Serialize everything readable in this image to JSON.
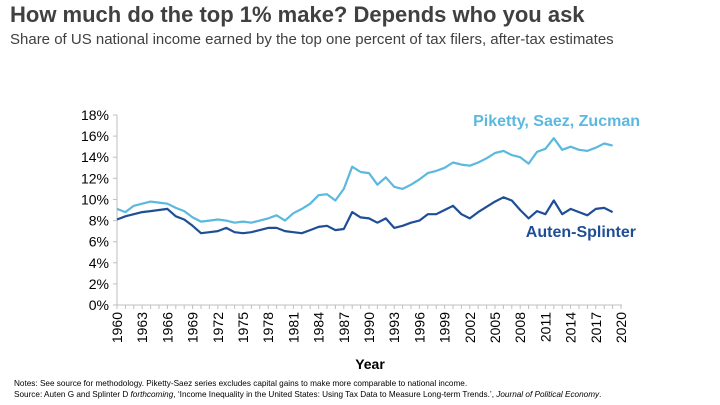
{
  "title": "How much do the top 1% make? Depends who you ask",
  "subtitle": "Share of US national income earned by the top one percent of tax filers, after-tax estimates",
  "notes": {
    "line1": "Notes: See source for methodology. Piketty-Saez series excludes capital gains to make more comparable to national income.",
    "source_a": "Source: Auten G and Splinter D ",
    "source_b": "forthcoming",
    "source_c": ", ‘Income Inequality in the United States: Using Tax Data to Measure Long-term Trends.’, ",
    "source_d": "Journal of Political Economy",
    "source_e": "."
  },
  "chart_data": {
    "type": "line",
    "xlabel": "Year",
    "ylabel": "",
    "xlim": [
      1960,
      2020
    ],
    "ylim": [
      0,
      18
    ],
    "x_ticks": [
      "1960",
      "1963",
      "1966",
      "1969",
      "1972",
      "1975",
      "1978",
      "1981",
      "1984",
      "1987",
      "1990",
      "1993",
      "1996",
      "1999",
      "2002",
      "2005",
      "2008",
      "2011",
      "2014",
      "2017",
      "2020"
    ],
    "y_ticks": [
      "0%",
      "2%",
      "4%",
      "6%",
      "8%",
      "10%",
      "12%",
      "14%",
      "16%",
      "18%"
    ],
    "grid": false,
    "legend": "inline labels",
    "x": [
      1960,
      1961,
      1962,
      1963,
      1964,
      1965,
      1966,
      1967,
      1968,
      1969,
      1970,
      1971,
      1972,
      1973,
      1974,
      1975,
      1976,
      1977,
      1978,
      1979,
      1980,
      1981,
      1982,
      1983,
      1984,
      1985,
      1986,
      1987,
      1988,
      1989,
      1990,
      1991,
      1992,
      1993,
      1994,
      1995,
      1996,
      1997,
      1998,
      1999,
      2000,
      2001,
      2002,
      2003,
      2004,
      2005,
      2006,
      2007,
      2008,
      2009,
      2010,
      2011,
      2012,
      2013,
      2014,
      2015,
      2016,
      2017,
      2018,
      2019
    ],
    "series": [
      {
        "name": "Piketty, Saez, Zucman",
        "color": "#5bb8de",
        "values": [
          9.1,
          8.8,
          9.4,
          9.6,
          9.8,
          9.7,
          9.6,
          9.2,
          8.9,
          8.3,
          7.9,
          8.0,
          8.1,
          8.0,
          7.8,
          7.9,
          7.8,
          8.0,
          8.2,
          8.5,
          8.0,
          8.7,
          9.1,
          9.6,
          10.4,
          10.5,
          9.9,
          11.0,
          13.1,
          12.6,
          12.5,
          11.4,
          12.1,
          11.2,
          11.0,
          11.4,
          11.9,
          12.5,
          12.7,
          13.0,
          13.5,
          13.3,
          13.2,
          13.5,
          13.9,
          14.4,
          14.6,
          14.2,
          14.0,
          13.4,
          14.5,
          14.8,
          15.8,
          14.7,
          15.0,
          14.7,
          14.6,
          14.9,
          15.3,
          15.1
        ]
      },
      {
        "name": "Auten-Splinter",
        "color": "#1f4e96",
        "values": [
          8.1,
          8.4,
          8.6,
          8.8,
          8.9,
          9.0,
          9.1,
          8.4,
          8.1,
          7.5,
          6.8,
          6.9,
          7.0,
          7.3,
          6.9,
          6.8,
          6.9,
          7.1,
          7.3,
          7.3,
          7.0,
          6.9,
          6.8,
          7.1,
          7.4,
          7.5,
          7.1,
          7.2,
          8.8,
          8.3,
          8.2,
          7.8,
          8.2,
          7.3,
          7.5,
          7.8,
          8.0,
          8.6,
          8.6,
          9.0,
          9.4,
          8.6,
          8.2,
          8.8,
          9.3,
          9.8,
          10.2,
          9.9,
          9.0,
          8.2,
          8.9,
          8.6,
          9.9,
          8.6,
          9.1,
          8.8,
          8.5,
          9.1,
          9.2,
          8.8
        ]
      }
    ]
  }
}
